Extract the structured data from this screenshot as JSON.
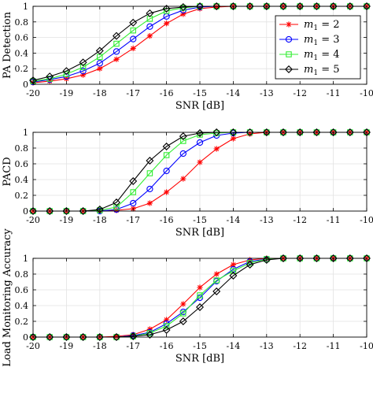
{
  "chart_data": [
    {
      "type": "line",
      "title": "",
      "xlabel": "SNR [dB]",
      "ylabel": "PA Detection",
      "xlim": [
        -20,
        -10
      ],
      "ylim": [
        0,
        1
      ],
      "x_ticks": [
        -20,
        -19,
        -18,
        -17,
        -16,
        -15,
        -14,
        -13,
        -12,
        -11,
        -10
      ],
      "y_ticks": [
        0,
        0.2,
        0.4,
        0.6,
        0.8,
        1
      ],
      "grid": true,
      "legend": "top-right",
      "x": [
        -20,
        -19.5,
        -19,
        -18.5,
        -18,
        -17.5,
        -17,
        -16.5,
        -16,
        -15.5,
        -15,
        -14.5,
        -14,
        -13.5,
        -13,
        -12.5,
        -12,
        -11.5,
        -11,
        -10.5,
        -10
      ],
      "series": [
        {
          "name": "m1 = 2",
          "label_main": "m",
          "label_sub": "1",
          "label_rest": " = 2",
          "color": "#ff0000",
          "marker": "star",
          "values": [
            0.02,
            0.04,
            0.07,
            0.12,
            0.2,
            0.32,
            0.46,
            0.62,
            0.78,
            0.9,
            0.97,
            0.99,
            1,
            1,
            1,
            1,
            1,
            1,
            1,
            1,
            1
          ]
        },
        {
          "name": "m1 = 3",
          "label_main": "m",
          "label_sub": "1",
          "label_rest": " = 3",
          "color": "#0000ff",
          "marker": "circle",
          "values": [
            0.03,
            0.06,
            0.1,
            0.17,
            0.27,
            0.42,
            0.58,
            0.74,
            0.87,
            0.95,
            0.99,
            1,
            1,
            1,
            1,
            1,
            1,
            1,
            1,
            1,
            1
          ]
        },
        {
          "name": "m1 = 4",
          "label_main": "m",
          "label_sub": "1",
          "label_rest": " = 4",
          "color": "#33ee33",
          "marker": "square",
          "values": [
            0.04,
            0.07,
            0.13,
            0.22,
            0.35,
            0.52,
            0.69,
            0.84,
            0.94,
            0.98,
            1,
            1,
            1,
            1,
            1,
            1,
            1,
            1,
            1,
            1,
            1
          ]
        },
        {
          "name": "m1 = 5",
          "label_main": "m",
          "label_sub": "1",
          "label_rest": " = 5",
          "color": "#000000",
          "marker": "diamond",
          "values": [
            0.05,
            0.1,
            0.17,
            0.28,
            0.43,
            0.62,
            0.79,
            0.91,
            0.97,
            0.99,
            1,
            1,
            1,
            1,
            1,
            1,
            1,
            1,
            1,
            1,
            1
          ]
        }
      ]
    },
    {
      "type": "line",
      "title": "",
      "xlabel": "SNR [dB]",
      "ylabel": "PACD",
      "xlim": [
        -20,
        -10
      ],
      "ylim": [
        0,
        1
      ],
      "x_ticks": [
        -20,
        -19,
        -18,
        -17,
        -16,
        -15,
        -14,
        -13,
        -12,
        -11,
        -10
      ],
      "y_ticks": [
        0,
        0.2,
        0.4,
        0.6,
        0.8,
        1
      ],
      "grid": true,
      "legend": "none",
      "x": [
        -20,
        -19.5,
        -19,
        -18.5,
        -18,
        -17.5,
        -17,
        -16.5,
        -16,
        -15.5,
        -15,
        -14.5,
        -14,
        -13.5,
        -13,
        -12.5,
        -12,
        -11.5,
        -11,
        -10.5,
        -10
      ],
      "series": [
        {
          "name": "m1 = 2",
          "color": "#ff0000",
          "marker": "star",
          "values": [
            0,
            0,
            0,
            0,
            0,
            0.01,
            0.03,
            0.1,
            0.24,
            0.41,
            0.62,
            0.79,
            0.92,
            0.98,
            1,
            1,
            1,
            1,
            1,
            1,
            1
          ]
        },
        {
          "name": "m1 = 3",
          "color": "#0000ff",
          "marker": "circle",
          "values": [
            0,
            0,
            0,
            0,
            0,
            0.02,
            0.1,
            0.28,
            0.51,
            0.73,
            0.87,
            0.96,
            0.99,
            1,
            1,
            1,
            1,
            1,
            1,
            1,
            1
          ]
        },
        {
          "name": "m1 = 4",
          "color": "#33ee33",
          "marker": "square",
          "values": [
            0,
            0,
            0,
            0,
            0.01,
            0.05,
            0.24,
            0.48,
            0.71,
            0.89,
            0.97,
            0.99,
            1,
            1,
            1,
            1,
            1,
            1,
            1,
            1,
            1
          ]
        },
        {
          "name": "m1 = 5",
          "color": "#000000",
          "marker": "diamond",
          "values": [
            0,
            0,
            0,
            0,
            0.02,
            0.11,
            0.38,
            0.64,
            0.82,
            0.95,
            0.99,
            1,
            1,
            1,
            1,
            1,
            1,
            1,
            1,
            1,
            1
          ]
        }
      ]
    },
    {
      "type": "line",
      "title": "",
      "xlabel": "SNR [dB]",
      "ylabel": "Load Monitoring Accuracy",
      "xlim": [
        -20,
        -10
      ],
      "ylim": [
        0,
        1
      ],
      "x_ticks": [
        -20,
        -19,
        -18,
        -17,
        -16,
        -15,
        -14,
        -13,
        -12,
        -11,
        -10
      ],
      "y_ticks": [
        0,
        0.2,
        0.4,
        0.6,
        0.8,
        1
      ],
      "grid": true,
      "legend": "none",
      "x": [
        -20,
        -19.5,
        -19,
        -18.5,
        -18,
        -17.5,
        -17,
        -16.5,
        -16,
        -15.5,
        -15,
        -14.5,
        -14,
        -13.5,
        -13,
        -12.5,
        -12,
        -11.5,
        -11,
        -10.5,
        -10
      ],
      "series": [
        {
          "name": "m1 = 2",
          "color": "#ff0000",
          "marker": "star",
          "values": [
            0,
            0,
            0,
            0,
            0,
            0.01,
            0.03,
            0.1,
            0.22,
            0.42,
            0.63,
            0.8,
            0.92,
            0.98,
            1,
            1,
            1,
            1,
            1,
            1,
            1
          ]
        },
        {
          "name": "m1 = 3",
          "color": "#0000ff",
          "marker": "circle",
          "values": [
            0,
            0,
            0,
            0,
            0,
            0,
            0.02,
            0.06,
            0.17,
            0.32,
            0.5,
            0.71,
            0.86,
            0.96,
            0.99,
            1,
            1,
            1,
            1,
            1,
            1
          ]
        },
        {
          "name": "m1 = 4",
          "color": "#33ee33",
          "marker": "square",
          "values": [
            0,
            0,
            0,
            0,
            0,
            0,
            0.01,
            0.05,
            0.14,
            0.3,
            0.53,
            0.72,
            0.84,
            0.94,
            0.99,
            1,
            1,
            1,
            1,
            1,
            1
          ]
        },
        {
          "name": "m1 = 5",
          "color": "#000000",
          "marker": "diamond",
          "values": [
            0,
            0,
            0,
            0,
            0,
            0,
            0.01,
            0.03,
            0.09,
            0.2,
            0.38,
            0.58,
            0.78,
            0.92,
            0.98,
            1,
            1,
            1,
            1,
            1,
            1
          ]
        }
      ]
    }
  ]
}
